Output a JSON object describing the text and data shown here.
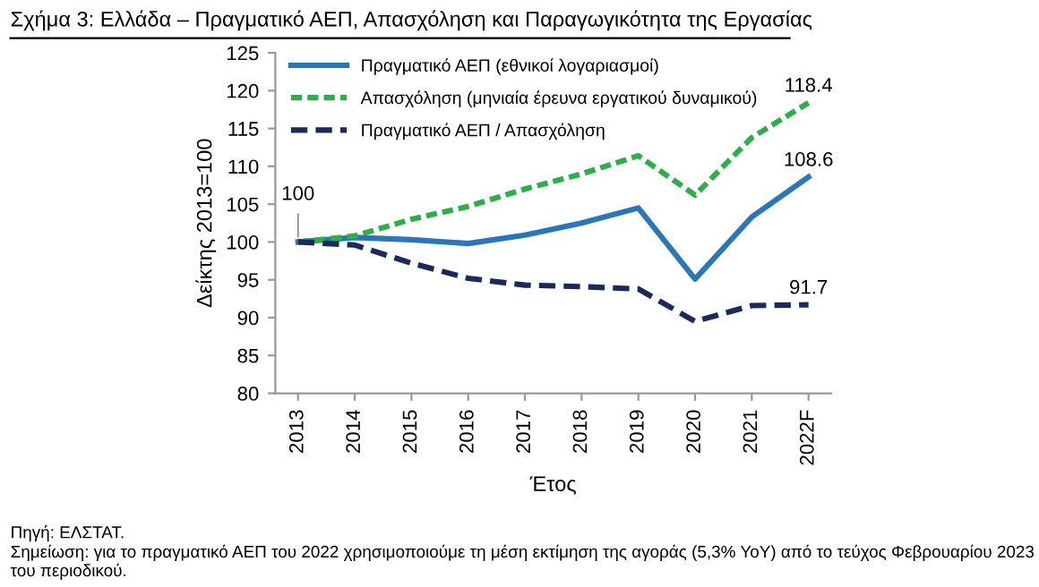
{
  "chart_data": {
    "type": "line",
    "title": "Σχήμα 3: Ελλάδα – Πραγματικό ΑΕΠ, Απασχόληση και Παραγωγικότητα της Εργασίας",
    "xlabel": "Έτος",
    "ylabel": "Δείκτης 2013=100",
    "categories": [
      "2013",
      "2014",
      "2015",
      "2016",
      "2017",
      "2018",
      "2019",
      "2020",
      "2021",
      "2022F"
    ],
    "series": [
      {
        "name": "Πραγματικό ΑΕΠ (εθνικοί λογαριασμοί)",
        "color": "#2a76b8",
        "line_style": "solid",
        "values": [
          100,
          100.6,
          100.3,
          99.8,
          100.9,
          102.5,
          104.5,
          95.1,
          103.3,
          108.6
        ],
        "value_labels": [
          null,
          null,
          null,
          null,
          null,
          null,
          null,
          null,
          null,
          "108.6"
        ]
      },
      {
        "name": "Απασχόληση (μηνιαία έρευνα εργατικού δυναμικού)",
        "color": "#2eae4a",
        "line_style": "dotted",
        "values": [
          100,
          100.8,
          103.0,
          104.7,
          107.0,
          109.0,
          111.4,
          106.2,
          113.8,
          118.4
        ],
        "value_labels": [
          null,
          null,
          null,
          null,
          null,
          null,
          null,
          null,
          null,
          "118.4"
        ]
      },
      {
        "name": "Πραγματικό ΑΕΠ / Απασχόληση",
        "color": "#1b2a5c",
        "line_style": "dashed",
        "values": [
          100,
          99.6,
          97.2,
          95.2,
          94.3,
          94.1,
          93.8,
          89.5,
          91.6,
          91.7
        ],
        "value_labels": [
          "100",
          null,
          null,
          null,
          null,
          null,
          null,
          null,
          null,
          "91.7"
        ]
      }
    ],
    "ylim": [
      80,
      125
    ],
    "yticks": [
      80,
      85,
      90,
      95,
      100,
      105,
      110,
      115,
      120,
      125
    ],
    "grid": false,
    "legend": "top left",
    "marker": "none",
    "annotations": [
      "Πηγή: ΕΛΣΤΑΤ.",
      "Σημείωση: για το πραγματικό ΑΕΠ του 2022 χρησιμοποιούμε τη μέση εκτίμηση της αγοράς (5,3% YoY) από το τεύχος Φεβρουαρίου 2023 του περιοδικού."
    ]
  }
}
